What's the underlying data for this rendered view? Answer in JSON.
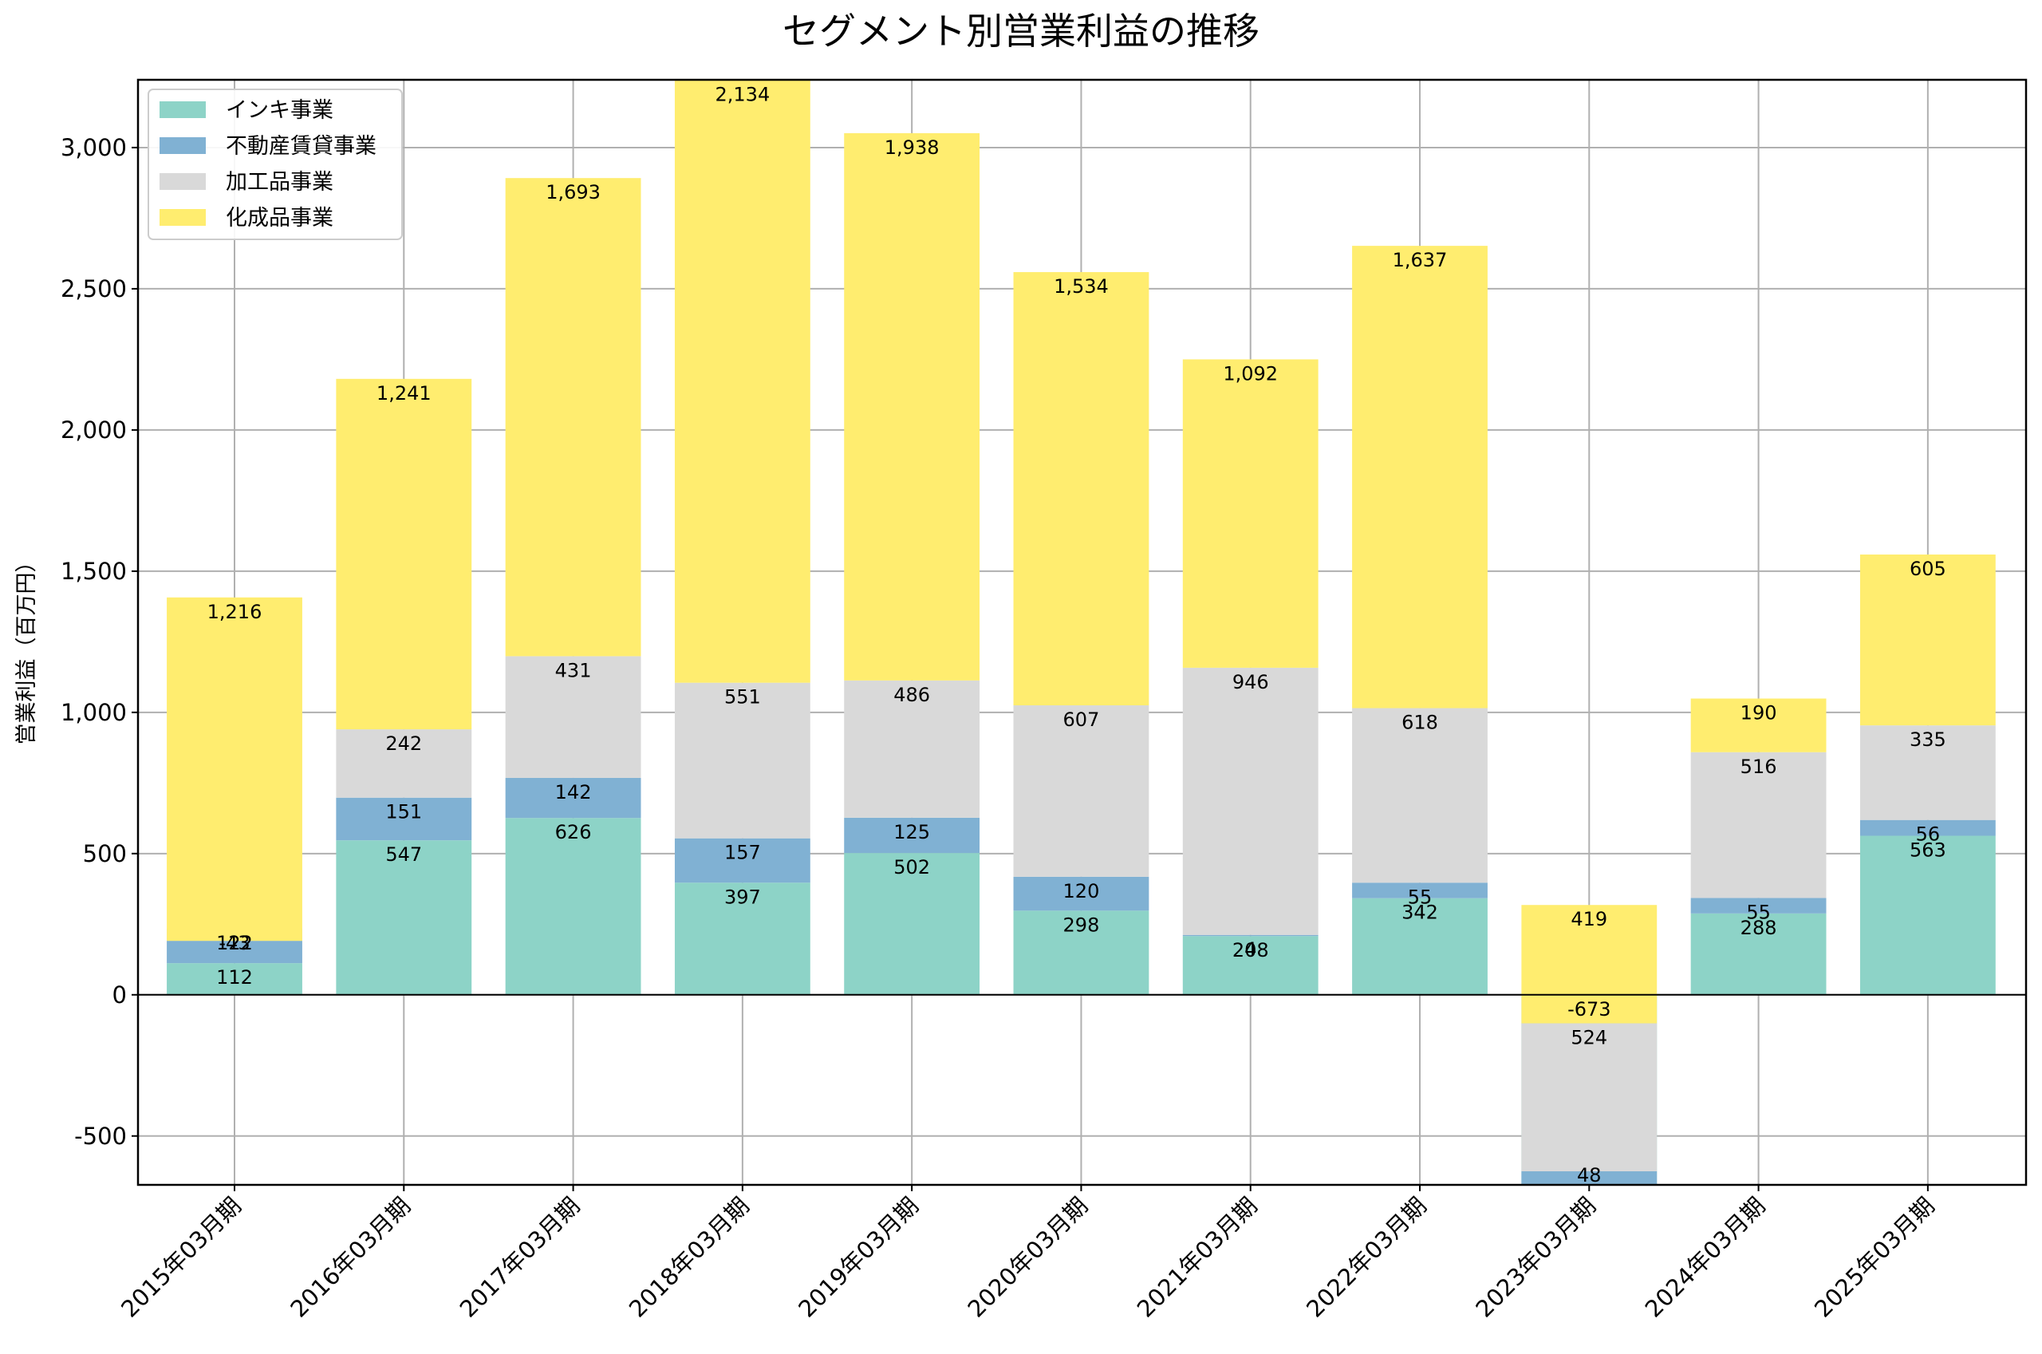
{
  "chart_data": {
    "type": "bar",
    "stacked": true,
    "title": "セグメント別営業利益の推移",
    "xlabel": "",
    "ylabel": "営業利益（百万円）",
    "ylim": [
      -673,
      3240
    ],
    "yticks": [
      -500,
      0,
      500,
      1000,
      1500,
      2000,
      2500,
      3000
    ],
    "ytick_labels": [
      "-500",
      "0",
      "500",
      "1,000",
      "1,500",
      "2,000",
      "2,500",
      "3,000"
    ],
    "grid": true,
    "legend_position": "top-left",
    "categories": [
      "2015年03月期",
      "2016年03月期",
      "2017年03月期",
      "2018年03月期",
      "2019年03月期",
      "2020年03月期",
      "2021年03月期",
      "2022年03月期",
      "2023年03月期",
      "2024年03月期",
      "2025年03月期"
    ],
    "series": [
      {
        "name": "インキ事業",
        "color": "#8dd3c7",
        "values": [
          112,
          547,
          626,
          397,
          502,
          298,
          208,
          342,
          -673,
          288,
          563
        ],
        "labels": [
          "112",
          "547",
          "626",
          "397",
          "502",
          "298",
          "208",
          "342",
          "-673",
          "288",
          "563"
        ]
      },
      {
        "name": "不動産賃貸事業",
        "color": "#80b1d3",
        "values": [
          122,
          151,
          142,
          157,
          125,
          120,
          4,
          55,
          48,
          55,
          56
        ],
        "labels": [
          "122",
          "151",
          "142",
          "157",
          "125",
          "120",
          "4",
          "55",
          "48",
          "55",
          "56"
        ]
      },
      {
        "name": "加工品事業",
        "color": "#d9d9d9",
        "values": [
          -43,
          242,
          431,
          551,
          486,
          607,
          946,
          618,
          524,
          516,
          335
        ],
        "labels": [
          "-43",
          "242",
          "431",
          "551",
          "486",
          "607",
          "946",
          "618",
          "524",
          "516",
          "335"
        ]
      },
      {
        "name": "化成品事業",
        "color": "#ffed6f",
        "values": [
          1216,
          1241,
          1693,
          2134,
          1938,
          1534,
          1092,
          1637,
          419,
          190,
          605
        ],
        "labels": [
          "1,216",
          "1,241",
          "1,693",
          "2,134",
          "1,938",
          "1,534",
          "1,092",
          "1,637",
          "419",
          "190",
          "605"
        ]
      }
    ]
  }
}
